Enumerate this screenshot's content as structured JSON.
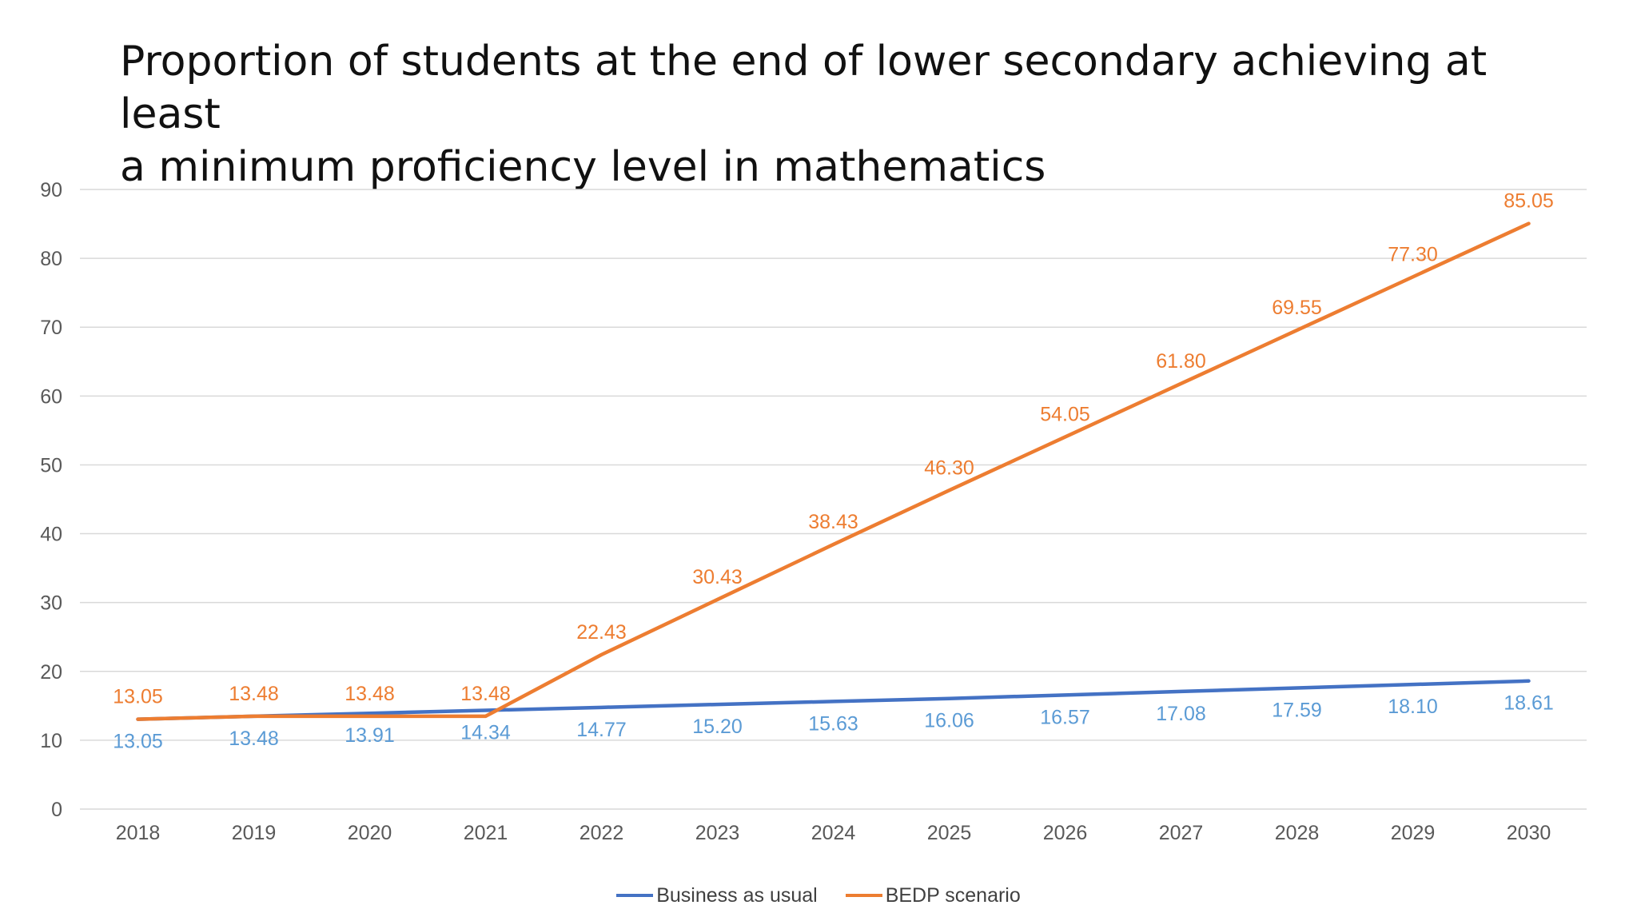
{
  "title_lines": [
    "Proportion of students at the end of lower secondary achieving at least",
    "a minimum proficiency level in mathematics"
  ],
  "chart_data": {
    "type": "line",
    "title": "Proportion of students at the end of lower secondary achieving at least a minimum proficiency level in mathematics",
    "categories": [
      "2018",
      "2019",
      "2020",
      "2021",
      "2022",
      "2023",
      "2024",
      "2025",
      "2026",
      "2027",
      "2028",
      "2029",
      "2030"
    ],
    "ylim": [
      0,
      90
    ],
    "yticks": [
      "0",
      "10",
      "20",
      "30",
      "40",
      "50",
      "60",
      "70",
      "80",
      "90"
    ],
    "grid": true,
    "legend_position": "bottom",
    "series": [
      {
        "name": "Business as usual",
        "color": "#4472C4",
        "label_color": "#5B9BD5",
        "values": [
          13.05,
          13.48,
          13.91,
          14.34,
          14.77,
          15.2,
          15.63,
          16.06,
          16.57,
          17.08,
          17.59,
          18.1,
          18.61
        ],
        "labels": [
          "13.05",
          "13.48",
          "13.91",
          "14.34",
          "14.77",
          "15.20",
          "15.63",
          "16.06",
          "16.57",
          "17.08",
          "17.59",
          "18.10",
          "18.61"
        ]
      },
      {
        "name": "BEDP scenario",
        "color": "#ED7D31",
        "label_color": "#ED7D31",
        "values": [
          13.05,
          13.48,
          13.48,
          13.48,
          22.43,
          30.43,
          38.43,
          46.3,
          54.05,
          61.8,
          69.55,
          77.3,
          85.05
        ],
        "labels": [
          "13.05",
          "13.48",
          "13.48",
          "13.48",
          "22.43",
          "30.43",
          "38.43",
          "46.30",
          "54.05",
          "61.80",
          "69.55",
          "77.30",
          "85.05"
        ]
      }
    ]
  }
}
